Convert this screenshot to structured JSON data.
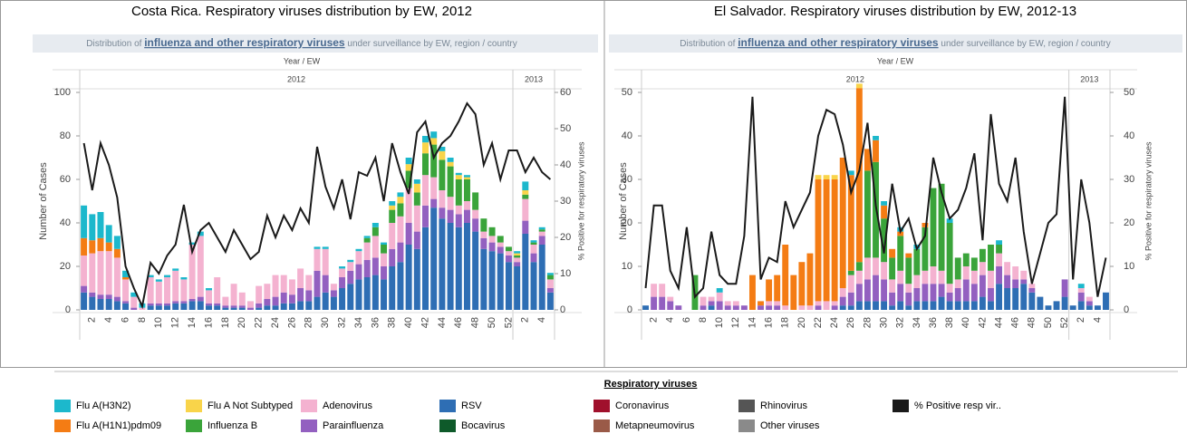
{
  "chart_data": [
    {
      "type": "bar",
      "title": "Costa Rica. Respiratory viruses distribution by EW, 2012",
      "subtitle": [
        "Distribution of ",
        "influenza and other respiratory viruses",
        " under surveillance by EW, region / country"
      ],
      "x_header": "Year / EW",
      "x_groups": [
        {
          "label": "2012",
          "size": 52
        },
        {
          "label": "2013",
          "size": 5
        }
      ],
      "categories": [
        null,
        "2",
        null,
        "4",
        null,
        "6",
        null,
        "8",
        null,
        "10",
        null,
        "12",
        null,
        "14",
        null,
        "16",
        null,
        "18",
        null,
        "20",
        null,
        "22",
        null,
        "24",
        null,
        "26",
        null,
        "28",
        null,
        "30",
        null,
        "32",
        null,
        "34",
        null,
        "36",
        null,
        "38",
        null,
        "40",
        null,
        "42",
        null,
        "44",
        null,
        "46",
        null,
        "48",
        null,
        "50",
        null,
        "52",
        null,
        "2",
        null,
        "4",
        null
      ],
      "ylabel": "Number of Cases",
      "y2label": "% Positive for respiratory viruses",
      "ylim": [
        0,
        100
      ],
      "yticks": [
        0,
        20,
        40,
        60,
        80,
        100
      ],
      "y2lim": [
        0,
        60
      ],
      "y2ticks": [
        0,
        10,
        20,
        30,
        40,
        50,
        60
      ],
      "series": [
        {
          "name": "RSV",
          "color": "#2e6eb4",
          "values": [
            8,
            6,
            5,
            5,
            4,
            3,
            0,
            0,
            2,
            2,
            2,
            3,
            3,
            4,
            4,
            2,
            2,
            1,
            1,
            1,
            0,
            1,
            2,
            2,
            3,
            3,
            4,
            4,
            6,
            8,
            6,
            10,
            12,
            14,
            15,
            16,
            14,
            20,
            22,
            30,
            28,
            38,
            47,
            42,
            40,
            38,
            40,
            36,
            28,
            27,
            26,
            22,
            20,
            35,
            22,
            30,
            8
          ]
        },
        {
          "name": "Parainfluenza",
          "color": "#9360c0",
          "values": [
            3,
            2,
            2,
            2,
            2,
            1,
            1,
            0,
            1,
            1,
            1,
            1,
            1,
            1,
            2,
            1,
            1,
            1,
            1,
            1,
            1,
            2,
            3,
            4,
            5,
            4,
            6,
            5,
            12,
            8,
            3,
            5,
            6,
            7,
            8,
            8,
            6,
            8,
            9,
            10,
            8,
            10,
            4,
            5,
            6,
            6,
            6,
            6,
            5,
            4,
            3,
            3,
            2,
            6,
            4,
            4,
            2
          ]
        },
        {
          "name": "Adenovirus",
          "color": "#f4b2d0",
          "values": [
            14,
            18,
            20,
            20,
            18,
            10,
            5,
            1,
            12,
            10,
            12,
            14,
            10,
            25,
            28,
            6,
            12,
            4,
            10,
            6,
            3,
            8,
            7,
            10,
            8,
            7,
            9,
            7,
            10,
            12,
            3,
            4,
            4,
            6,
            8,
            10,
            6,
            12,
            12,
            16,
            12,
            14,
            10,
            8,
            6,
            4,
            4,
            4,
            3,
            3,
            2,
            2,
            2,
            10,
            4,
            2,
            4
          ]
        },
        {
          "name": "Influenza B",
          "color": "#3aa43a",
          "values": [
            0,
            0,
            0,
            0,
            0,
            0,
            0,
            0,
            0,
            0,
            0,
            0,
            0,
            0,
            0,
            0,
            0,
            0,
            0,
            0,
            0,
            0,
            0,
            0,
            0,
            0,
            0,
            0,
            0,
            0,
            0,
            0,
            0,
            0,
            2,
            4,
            4,
            6,
            6,
            8,
            6,
            10,
            15,
            14,
            14,
            12,
            10,
            8,
            6,
            4,
            3,
            2,
            1,
            2,
            1,
            1,
            2
          ]
        },
        {
          "name": "Flu A(H1N1)pdm09",
          "color": "#f47c14",
          "values": [
            8,
            6,
            6,
            4,
            4,
            1,
            0,
            0,
            0,
            0,
            0,
            0,
            0,
            0,
            0,
            0,
            0,
            0,
            0,
            0,
            0,
            0,
            0,
            0,
            0,
            0,
            0,
            0,
            0,
            0,
            0,
            0,
            0,
            0,
            0,
            0,
            0,
            0,
            0,
            0,
            0,
            0,
            0,
            0,
            0,
            0,
            0,
            0,
            0,
            0,
            0,
            0,
            0,
            0,
            0,
            0,
            0
          ]
        },
        {
          "name": "Flu A Not Subtyped",
          "color": "#f9d44a",
          "values": [
            0,
            0,
            0,
            0,
            0,
            0,
            0,
            0,
            0,
            0,
            0,
            0,
            0,
            0,
            0,
            0,
            0,
            0,
            0,
            0,
            0,
            0,
            0,
            0,
            0,
            0,
            0,
            0,
            0,
            0,
            0,
            0,
            0,
            0,
            0,
            0,
            0,
            2,
            3,
            3,
            4,
            5,
            3,
            4,
            2,
            2,
            1,
            0,
            0,
            0,
            0,
            0,
            1,
            2,
            0,
            0,
            0
          ]
        },
        {
          "name": "Flu A(H3N2)",
          "color": "#1cb8cc",
          "values": [
            15,
            12,
            12,
            8,
            6,
            3,
            2,
            2,
            1,
            1,
            1,
            1,
            1,
            1,
            2,
            1,
            0,
            0,
            0,
            0,
            0,
            0,
            0,
            0,
            0,
            0,
            0,
            0,
            1,
            1,
            0,
            1,
            1,
            1,
            1,
            2,
            1,
            2,
            2,
            3,
            2,
            3,
            3,
            2,
            2,
            1,
            1,
            0,
            0,
            0,
            0,
            0,
            1,
            4,
            1,
            1,
            1
          ]
        },
        {
          "name": "% Positive resp vir..",
          "color": "#1a1a1a",
          "axis": "y2",
          "values": [
            46,
            33,
            46,
            40,
            31,
            12,
            6,
            1,
            13,
            10,
            15,
            18,
            29,
            16,
            22,
            24,
            20,
            16,
            22,
            18,
            14,
            16,
            26,
            20,
            26,
            22,
            28,
            24,
            45,
            34,
            28,
            36,
            25,
            38,
            37,
            42,
            30,
            46,
            38,
            32,
            49,
            52,
            42,
            46,
            48,
            52,
            57,
            54,
            40,
            46,
            36,
            44,
            44,
            38,
            42,
            38,
            36
          ]
        }
      ]
    },
    {
      "type": "bar",
      "title": "El Salvador. Respiratory viruses distribution by EW, 2012-13",
      "subtitle": [
        "Distribution of ",
        "influenza and other respiratory viruses",
        " under surveillance by EW, region / country"
      ],
      "x_header": "Year / EW",
      "x_groups": [
        {
          "label": "2012",
          "size": 52
        },
        {
          "label": "2013",
          "size": 5
        }
      ],
      "categories": [
        null,
        "2",
        null,
        "4",
        null,
        "6",
        null,
        "8",
        null,
        "10",
        null,
        "12",
        null,
        "14",
        null,
        "16",
        null,
        "18",
        null,
        "20",
        null,
        "22",
        null,
        "24",
        null,
        "26",
        null,
        "28",
        null,
        "30",
        null,
        "32",
        null,
        "34",
        null,
        "36",
        null,
        "38",
        null,
        "40",
        null,
        "42",
        null,
        "44",
        null,
        "46",
        null,
        "48",
        null,
        "50",
        null,
        "52",
        null,
        "2",
        null,
        "4",
        null
      ],
      "ylabel": "Number of Cases",
      "y2label": "% Positive for respiratory viruses",
      "ylim": [
        0,
        50
      ],
      "yticks": [
        0,
        10,
        20,
        30,
        40,
        50
      ],
      "y2lim": [
        0,
        50
      ],
      "y2ticks": [
        0,
        10,
        20,
        30,
        40,
        50
      ],
      "series": [
        {
          "values": [
            1,
            0,
            0,
            0,
            0,
            0,
            0,
            0,
            1,
            0,
            0,
            0,
            0,
            0,
            0,
            0,
            0,
            0,
            0,
            0,
            0,
            0,
            0,
            0,
            1,
            1,
            2,
            2,
            2,
            2,
            1,
            2,
            1,
            2,
            2,
            2,
            3,
            2,
            2,
            2,
            2,
            3,
            2,
            6,
            5,
            5,
            6,
            4,
            3,
            1,
            2,
            3,
            1,
            2,
            1,
            1,
            4
          ]
        },
        {
          "values": [
            0,
            3,
            3,
            2,
            1,
            0,
            0,
            1,
            1,
            2,
            1,
            1,
            1,
            0,
            1,
            1,
            1,
            0,
            0,
            0,
            0,
            1,
            0,
            1,
            2,
            3,
            4,
            5,
            6,
            5,
            3,
            4,
            3,
            3,
            4,
            4,
            3,
            2,
            3,
            5,
            4,
            5,
            3,
            4,
            3,
            2,
            1,
            1,
            0,
            0,
            0,
            4,
            0,
            2,
            1,
            0,
            0
          ]
        },
        {
          "values": [
            0,
            3,
            3,
            1,
            0,
            0,
            0,
            2,
            1,
            2,
            1,
            1,
            0,
            0,
            0,
            1,
            1,
            1,
            0,
            1,
            1,
            1,
            2,
            1,
            2,
            4,
            3,
            5,
            4,
            4,
            3,
            3,
            2,
            3,
            3,
            4,
            3,
            2,
            2,
            3,
            3,
            3,
            4,
            3,
            3,
            3,
            2,
            1,
            0,
            0,
            0,
            0,
            0,
            1,
            1,
            0,
            0
          ]
        },
        {
          "values": [
            0,
            0,
            0,
            0,
            0,
            0,
            8,
            0,
            0,
            0,
            0,
            0,
            0,
            0,
            0,
            0,
            0,
            0,
            0,
            0,
            0,
            0,
            0,
            0,
            0,
            1,
            2,
            20,
            22,
            10,
            5,
            8,
            6,
            6,
            10,
            18,
            20,
            14,
            5,
            3,
            3,
            3,
            6,
            2,
            0,
            0,
            0,
            0,
            0,
            0,
            0,
            0,
            0,
            0,
            0,
            0,
            0
          ]
        },
        {
          "values": [
            0,
            0,
            0,
            0,
            0,
            0,
            0,
            0,
            0,
            0,
            0,
            0,
            0,
            8,
            1,
            5,
            6,
            14,
            8,
            10,
            12,
            28,
            28,
            28,
            30,
            22,
            40,
            5,
            5,
            3,
            2,
            1,
            1,
            0,
            1,
            0,
            0,
            0,
            0,
            0,
            0,
            0,
            0,
            0,
            0,
            0,
            0,
            0,
            0,
            0,
            0,
            0,
            0,
            0,
            0,
            0,
            0
          ]
        },
        {
          "values": [
            0,
            0,
            0,
            0,
            0,
            0,
            0,
            0,
            0,
            0,
            0,
            0,
            0,
            0,
            0,
            0,
            0,
            0,
            0,
            0,
            0,
            1,
            1,
            1,
            0,
            0,
            1,
            0,
            0,
            0,
            0,
            0,
            0,
            0,
            0,
            0,
            0,
            0,
            0,
            0,
            0,
            0,
            0,
            0,
            0,
            0,
            0,
            0,
            0,
            0,
            0,
            0,
            0,
            0,
            0,
            0,
            0
          ]
        },
        {
          "values": [
            0,
            0,
            0,
            0,
            0,
            0,
            0,
            0,
            0,
            1,
            0,
            0,
            0,
            0,
            0,
            0,
            0,
            0,
            0,
            0,
            0,
            0,
            0,
            0,
            0,
            1,
            0,
            0,
            1,
            1,
            0,
            1,
            0,
            1,
            0,
            0,
            0,
            1,
            0,
            0,
            0,
            0,
            0,
            1,
            0,
            0,
            0,
            0,
            0,
            0,
            0,
            0,
            0,
            1,
            0,
            0,
            0
          ]
        },
        {
          "axis": "y2",
          "values": [
            5,
            24,
            24,
            9,
            5,
            19,
            3,
            5,
            18,
            8,
            6,
            6,
            17,
            49,
            7,
            12,
            11,
            25,
            19,
            23,
            27,
            40,
            46,
            45,
            38,
            27,
            32,
            43,
            24,
            13,
            29,
            18,
            21,
            14,
            17,
            35,
            27,
            21,
            23,
            28,
            36,
            16,
            45,
            29,
            25,
            35,
            18,
            6,
            13,
            20,
            22,
            49,
            7,
            30,
            20,
            3,
            12
          ]
        }
      ]
    }
  ],
  "legend": {
    "title": "Respiratory viruses",
    "extra": [
      {
        "name": "Coronavirus",
        "color": "#a0102c"
      },
      {
        "name": "Rhinovirus",
        "color": "#555555"
      },
      {
        "name": "Bocavirus",
        "color": "#0e5a2a"
      },
      {
        "name": "Metapneumovirus",
        "color": "#9a5a48"
      },
      {
        "name": "Other viruses",
        "color": "#8a8a8a"
      }
    ]
  }
}
